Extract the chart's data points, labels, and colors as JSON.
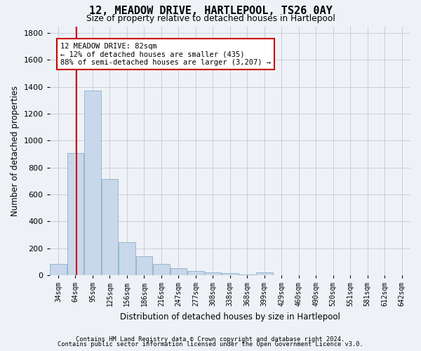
{
  "title": "12, MEADOW DRIVE, HARTLEPOOL, TS26 0AY",
  "subtitle": "Size of property relative to detached houses in Hartlepool",
  "xlabel": "Distribution of detached houses by size in Hartlepool",
  "ylabel": "Number of detached properties",
  "bin_labels": [
    "34sqm",
    "64sqm",
    "95sqm",
    "125sqm",
    "156sqm",
    "186sqm",
    "216sqm",
    "247sqm",
    "277sqm",
    "308sqm",
    "338sqm",
    "368sqm",
    "399sqm",
    "429sqm",
    "460sqm",
    "490sqm",
    "520sqm",
    "551sqm",
    "581sqm",
    "612sqm",
    "642sqm"
  ],
  "values": [
    82,
    910,
    1370,
    715,
    245,
    140,
    85,
    50,
    30,
    20,
    15,
    5,
    20,
    0,
    0,
    0,
    0,
    0,
    0,
    0,
    0
  ],
  "bar_color": "#c8d8ea",
  "bar_edge_color": "#8ab0cc",
  "grid_color": "#c8c8d0",
  "vline_color": "#cc0000",
  "vline_bin": 1,
  "annotation_text": "12 MEADOW DRIVE: 82sqm\n← 12% of detached houses are smaller (435)\n88% of semi-detached houses are larger (3,207) →",
  "annotation_box_facecolor": "#ffffff",
  "annotation_box_edgecolor": "#cc0000",
  "ylim": [
    0,
    1850
  ],
  "yticks": [
    0,
    200,
    400,
    600,
    800,
    1000,
    1200,
    1400,
    1600,
    1800
  ],
  "footnote1": "Contains HM Land Registry data © Crown copyright and database right 2024.",
  "footnote2": "Contains public sector information licensed under the Open Government Licence v3.0.",
  "bg_color": "#eef2f7",
  "plot_bg_color": "#eef2f7"
}
